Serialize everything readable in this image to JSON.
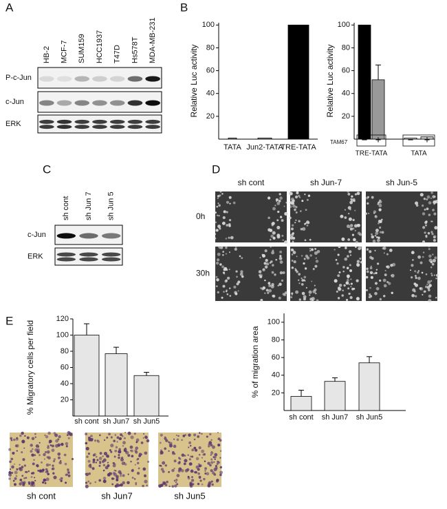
{
  "panel_a": {
    "label": "A",
    "lanes": [
      "HB-2",
      "MCF-7",
      "SUM159",
      "HCC1937",
      "T47D",
      "Hs578T",
      "MDA-MB-231"
    ],
    "rows": [
      "P-c-Jun",
      "c-Jun",
      "ERK"
    ]
  },
  "panel_b": {
    "label": "B"
  },
  "panel_c": {
    "label": "C",
    "lanes": [
      "sh cont",
      "sh Jun 7",
      "sh Jun 5"
    ],
    "rows": [
      "c-Jun",
      "ERK"
    ]
  },
  "panel_d": {
    "label": "D",
    "columns": [
      "sh cont",
      "sh Jun-7",
      "sh Jun-5"
    ],
    "rows": [
      "0h",
      "30h"
    ]
  },
  "panel_e": {
    "label": "E",
    "captions": [
      "sh cont",
      "sh Jun7",
      "sh Jun5"
    ]
  },
  "chart_data": [
    {
      "type": "bar",
      "ylabel": "Relative Luc activity",
      "categories": [
        "TATA",
        "Jun2-TATA",
        "TRE-TATA"
      ],
      "values": [
        1,
        1,
        100
      ],
      "colors": [
        "#999999",
        "#999999",
        "#000000"
      ],
      "ylim": [
        0,
        102
      ],
      "yticks": [
        20,
        40,
        60,
        80,
        100
      ]
    },
    {
      "type": "bar",
      "ylabel": "Relative Luc activity",
      "categories": [
        "−",
        "+",
        "−",
        "+"
      ],
      "group_labels": [
        "TRE-TATA",
        "TATA"
      ],
      "row_label": "TAM67",
      "values": [
        100,
        52,
        1,
        2
      ],
      "errors": [
        null,
        13,
        null,
        null
      ],
      "colors": [
        "#000000",
        "#999999",
        "#ffffff",
        "#cccccc"
      ],
      "ylim": [
        0,
        102
      ],
      "yticks": [
        20,
        40,
        60,
        80,
        100
      ]
    },
    {
      "type": "bar",
      "ylabel": "% of migration area",
      "categories": [
        "sh cont",
        "sh Jun7",
        "sh Jun5"
      ],
      "values": [
        16,
        33,
        54
      ],
      "errors": [
        7,
        4,
        7
      ],
      "colors": [
        "#e6e6e6",
        "#e6e6e6",
        "#e6e6e6"
      ],
      "ylim": [
        0,
        110
      ],
      "yticks": [
        20,
        40,
        60,
        80,
        100
      ]
    },
    {
      "type": "bar",
      "ylabel": "% Migratory cells per field",
      "categories": [
        "sh cont",
        "sh Jun7",
        "sh Jun5"
      ],
      "values": [
        100,
        77,
        50
      ],
      "errors": [
        14,
        8,
        4
      ],
      "colors": [
        "#e6e6e6",
        "#e6e6e6",
        "#e6e6e6"
      ],
      "ylim": [
        0,
        120
      ],
      "yticks": [
        20,
        40,
        60,
        80,
        100,
        120
      ]
    }
  ]
}
